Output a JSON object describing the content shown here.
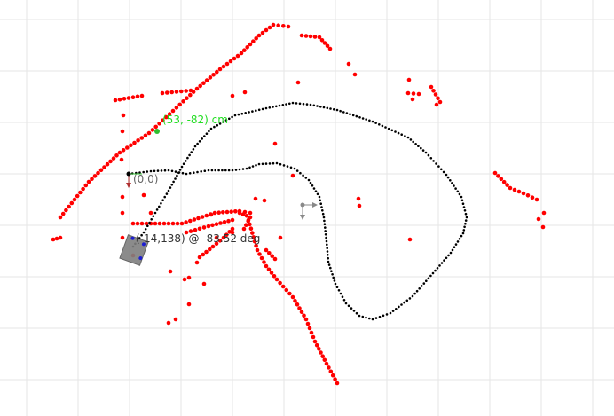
{
  "labels": {
    "cursor_point": "(53, -82) cm",
    "origin": "(0,0)",
    "robot_pose": "(-14,138) @ -83.52 deg"
  },
  "colors": {
    "background": "#ffffff",
    "grid": "#e6e6e6",
    "obstacle": "#ff0000",
    "path": "#000000",
    "path_highlight": "#2fbf2f",
    "cursor_label": "#22dd22",
    "origin_label": "#666666",
    "robot_body": "#7f7f7f",
    "robot_sensor": "#1f1fd0",
    "frame_axis": "#888888"
  },
  "icons": {
    "origin_marker": "origin-frame-icon",
    "robot": "robot-icon",
    "goal_marker": "goal-frame-icon"
  }
}
